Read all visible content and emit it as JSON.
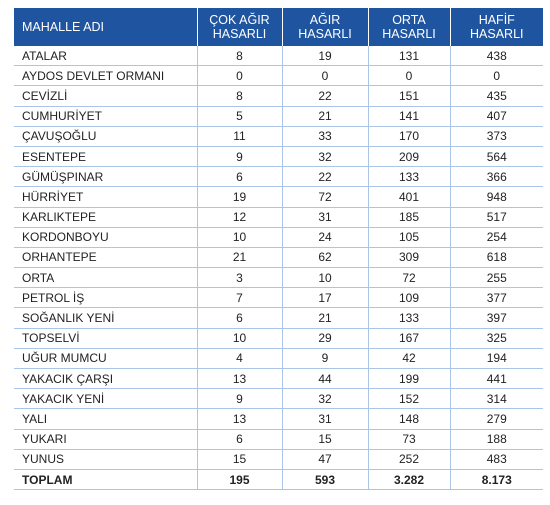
{
  "table": {
    "header": [
      "MAHALLE ADI",
      "ÇOK AĞIR HASARLI",
      "AĞIR HASARLI",
      "ORTA HASARLI",
      "HAFİF HASARLI"
    ],
    "rows": [
      [
        "ATALAR",
        8,
        19,
        131,
        438
      ],
      [
        "AYDOS DEVLET ORMANI",
        0,
        0,
        0,
        0
      ],
      [
        "CEVİZLİ",
        8,
        22,
        151,
        435
      ],
      [
        "CUMHURİYET",
        5,
        21,
        141,
        407
      ],
      [
        "ÇAVUŞOĞLU",
        11,
        33,
        170,
        373
      ],
      [
        "ESENTEPE",
        9,
        32,
        209,
        564
      ],
      [
        "GÜMÜŞPINAR",
        6,
        22,
        133,
        366
      ],
      [
        "HÜRRİYET",
        19,
        72,
        401,
        948
      ],
      [
        "KARLIKTEPE",
        12,
        31,
        185,
        517
      ],
      [
        "KORDONBOYU",
        10,
        24,
        105,
        254
      ],
      [
        "ORHANTEPE",
        21,
        62,
        309,
        618
      ],
      [
        "ORTA",
        3,
        10,
        72,
        255
      ],
      [
        "PETROL İŞ",
        7,
        17,
        109,
        377
      ],
      [
        "SOĞANLIK YENİ",
        6,
        21,
        133,
        397
      ],
      [
        "TOPSELVİ",
        10,
        29,
        167,
        325
      ],
      [
        "UĞUR MUMCU",
        4,
        9,
        42,
        194
      ],
      [
        "YAKACIK ÇARŞI",
        13,
        44,
        199,
        441
      ],
      [
        "YAKACIK YENİ",
        9,
        32,
        152,
        314
      ],
      [
        "YALI",
        13,
        31,
        148,
        279
      ],
      [
        "YUKARI",
        6,
        15,
        73,
        188
      ],
      [
        "YUNUS",
        15,
        47,
        252,
        483
      ]
    ],
    "total": [
      "TOPLAM",
      "195",
      "593",
      "3.282",
      "8.173"
    ]
  }
}
